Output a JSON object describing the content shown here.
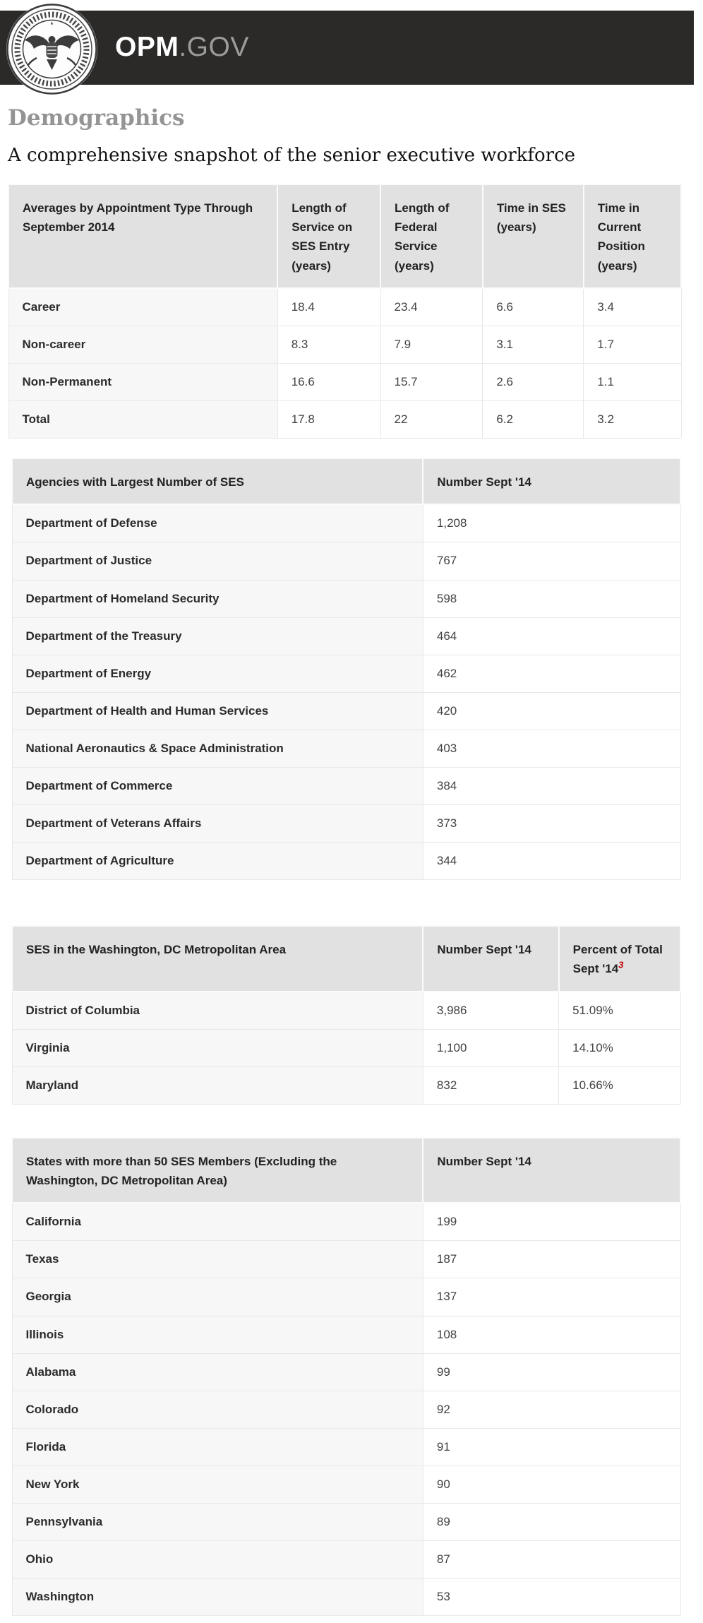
{
  "header": {
    "brand_primary": "OPM",
    "brand_secondary": ".GOV",
    "bar_color": "#2b2a29",
    "seal_icon": "opm-agency-seal"
  },
  "page": {
    "title": "Demographics",
    "subtitle": "A comprehensive snapshot of the senior executive workforce"
  },
  "colors": {
    "header_bg": "#e1e1e1",
    "label_col_bg": "#f7f7f7",
    "footnote_red": "#c00000"
  },
  "tables": {
    "averages": {
      "headers": [
        "Averages by Appointment Type Through September 2014",
        "Length of Service on SES Entry (years)",
        "Length of Federal Service (years)",
        "Time in SES (years)",
        "Time in Current Position (years)"
      ],
      "rows": [
        {
          "label": "Career",
          "values": [
            "18.4",
            "23.4",
            "6.6",
            "3.4"
          ]
        },
        {
          "label": "Non-career",
          "values": [
            "8.3",
            "7.9",
            "3.1",
            "1.7"
          ]
        },
        {
          "label": "Non-Permanent",
          "values": [
            "16.6",
            "15.7",
            "2.6",
            "1.1"
          ]
        },
        {
          "label": "Total",
          "values": [
            "17.8",
            "22",
            "6.2",
            "3.2"
          ]
        }
      ]
    },
    "agencies": {
      "headers": [
        "Agencies with Largest Number of SES",
        "Number Sept '14"
      ],
      "rows": [
        {
          "label": "Department of Defense",
          "values": [
            "1,208"
          ]
        },
        {
          "label": "Department of Justice",
          "values": [
            "767"
          ]
        },
        {
          "label": "Department of Homeland Security",
          "values": [
            "598"
          ]
        },
        {
          "label": "Department of the Treasury",
          "values": [
            "464"
          ]
        },
        {
          "label": "Department of Energy",
          "values": [
            "462"
          ]
        },
        {
          "label": "Department of Health and Human Services",
          "values": [
            "420"
          ]
        },
        {
          "label": "National Aeronautics & Space Administration",
          "values": [
            "403"
          ]
        },
        {
          "label": "Department of Commerce",
          "values": [
            "384"
          ]
        },
        {
          "label": "Department of Veterans Affairs",
          "values": [
            "373"
          ]
        },
        {
          "label": "Department of Agriculture",
          "values": [
            "344"
          ]
        }
      ]
    },
    "dc_metro": {
      "headers": [
        "SES in the Washington, DC Metropolitan Area",
        "Number Sept '14",
        "Percent of Total Sept '14"
      ],
      "footnote_marker": "3",
      "rows": [
        {
          "label": "District of Columbia",
          "values": [
            "3,986",
            "51.09%"
          ]
        },
        {
          "label": "Virginia",
          "values": [
            "1,100",
            "14.10%"
          ]
        },
        {
          "label": "Maryland",
          "values": [
            "832",
            "10.66%"
          ]
        }
      ]
    },
    "states": {
      "headers": [
        "States with more than 50 SES Members (Excluding the Washington, DC Metropolitan Area)",
        "Number Sept '14"
      ],
      "rows": [
        {
          "label": "California",
          "values": [
            "199"
          ]
        },
        {
          "label": "Texas",
          "values": [
            "187"
          ]
        },
        {
          "label": "Georgia",
          "values": [
            "137"
          ]
        },
        {
          "label": "Illinois",
          "values": [
            "108"
          ]
        },
        {
          "label": "Alabama",
          "values": [
            "99"
          ]
        },
        {
          "label": "Colorado",
          "values": [
            "92"
          ]
        },
        {
          "label": "Florida",
          "values": [
            "91"
          ]
        },
        {
          "label": "New York",
          "values": [
            "90"
          ]
        },
        {
          "label": "Pennsylvania",
          "values": [
            "89"
          ]
        },
        {
          "label": "Ohio",
          "values": [
            "87"
          ]
        },
        {
          "label": "Washington",
          "values": [
            "53"
          ]
        }
      ]
    }
  }
}
